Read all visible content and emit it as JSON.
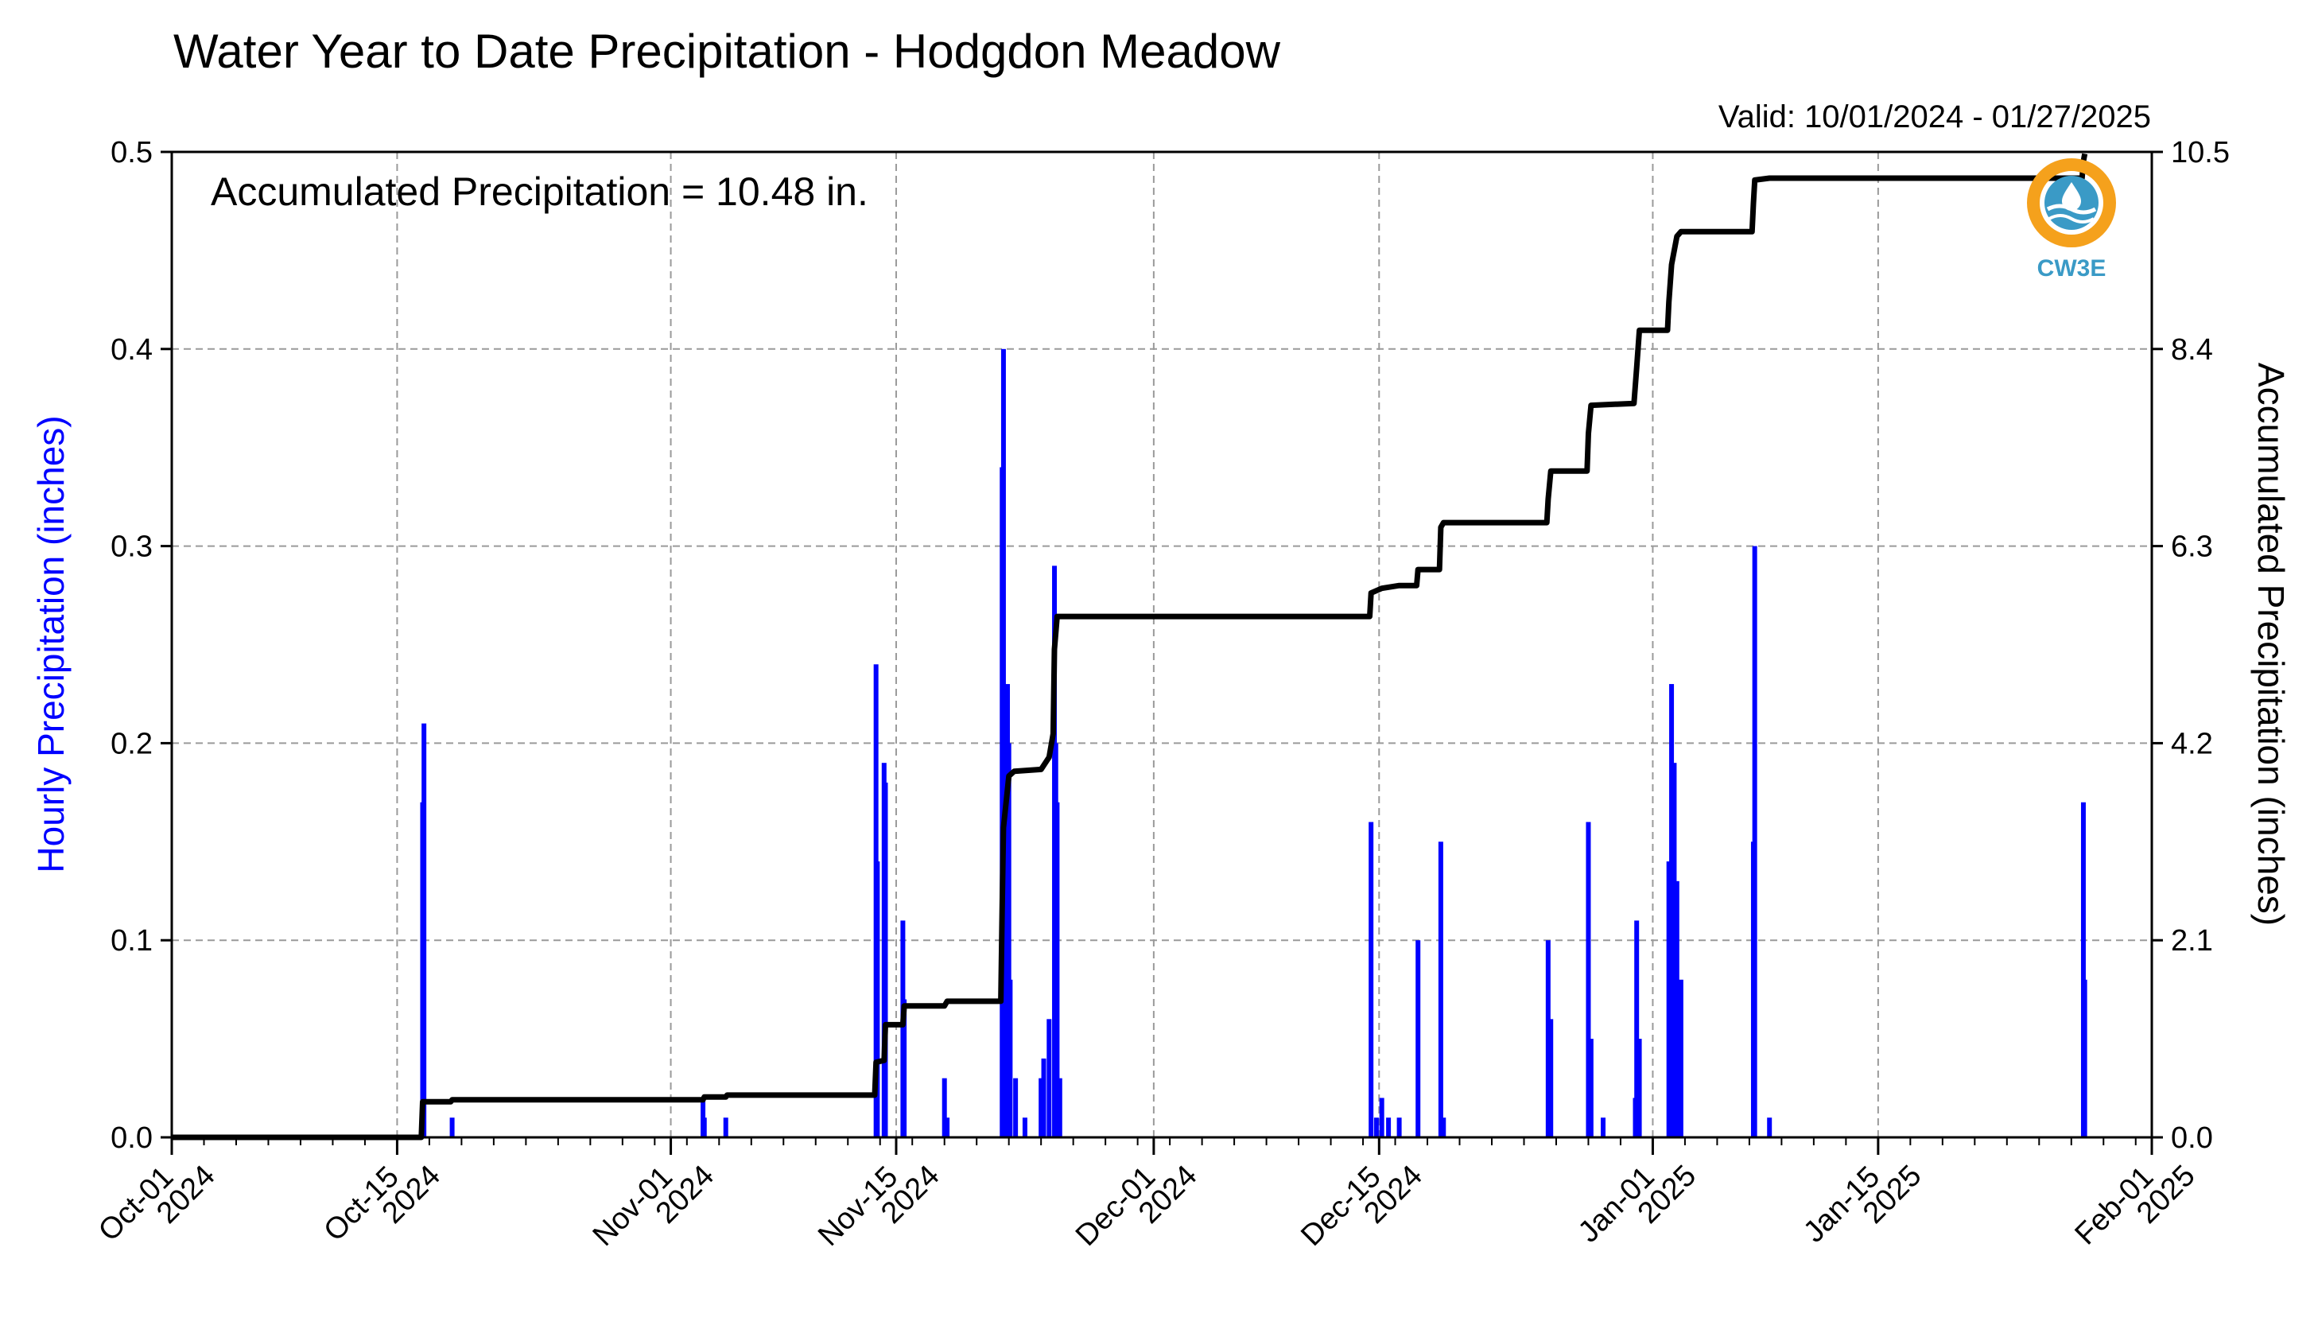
{
  "chart_data": {
    "type": "bar",
    "title": "Water Year to Date Precipitation - Hodgdon Meadow",
    "valid_label": "Valid: 10/01/2024 - 01/27/2025",
    "annotation": "Accumulated Precipitation = 10.48 in.",
    "ylabel_left": "Hourly Precipitation (inches)",
    "ylabel_right": "Accumulated Precipitation (inches)",
    "ylim_left": [
      0,
      0.5
    ],
    "ylim_right": [
      0,
      10.5
    ],
    "xlim": [
      "2024-10-01",
      "2025-02-01"
    ],
    "left_ticks": [
      "0.0",
      "0.1",
      "0.2",
      "0.3",
      "0.4",
      "0.5"
    ],
    "right_ticks": [
      "0.0",
      "2.1",
      "4.2",
      "6.3",
      "8.4",
      "10.5"
    ],
    "x_ticks": [
      {
        "date": "2024-10-01",
        "line1": "Oct-01",
        "line2": "2024"
      },
      {
        "date": "2024-10-15",
        "line1": "Oct-15",
        "line2": "2024"
      },
      {
        "date": "2024-11-01",
        "line1": "Nov-01",
        "line2": "2024"
      },
      {
        "date": "2024-11-15",
        "line1": "Nov-15",
        "line2": "2024"
      },
      {
        "date": "2024-12-01",
        "line1": "Dec-01",
        "line2": "2024"
      },
      {
        "date": "2024-12-15",
        "line1": "Dec-15",
        "line2": "2024"
      },
      {
        "date": "2025-01-01",
        "line1": "Jan-01",
        "line2": "2025"
      },
      {
        "date": "2025-01-15",
        "line1": "Jan-15",
        "line2": "2025"
      },
      {
        "date": "2025-02-01",
        "line1": "Feb-01",
        "line2": "2025"
      }
    ],
    "grid": true,
    "series": [
      {
        "name": "Hourly Precipitation",
        "color": "#0000ff",
        "type": "bar",
        "points": [
          [
            "2024-10-16T14:00",
            0.17
          ],
          [
            "2024-10-16T16:00",
            0.21
          ],
          [
            "2024-10-18T10:00",
            0.01
          ],
          [
            "2024-11-03T00:00",
            0.02
          ],
          [
            "2024-11-03T02:00",
            0.01
          ],
          [
            "2024-11-04T10:00",
            0.01
          ],
          [
            "2024-11-13T18:00",
            0.24
          ],
          [
            "2024-11-13T20:00",
            0.14
          ],
          [
            "2024-11-14T06:00",
            0.19
          ],
          [
            "2024-11-14T08:00",
            0.18
          ],
          [
            "2024-11-15T10:00",
            0.11
          ],
          [
            "2024-11-15T12:00",
            0.07
          ],
          [
            "2024-11-18T00:00",
            0.03
          ],
          [
            "2024-11-18T04:00",
            0.01
          ],
          [
            "2024-11-21T14:00",
            0.34
          ],
          [
            "2024-11-21T16:00",
            0.4
          ],
          [
            "2024-11-21T22:00",
            0.23
          ],
          [
            "2024-11-22T00:00",
            0.2
          ],
          [
            "2024-11-22T02:00",
            0.08
          ],
          [
            "2024-11-22T10:00",
            0.03
          ],
          [
            "2024-11-23T00:00",
            0.01
          ],
          [
            "2024-11-24T00:00",
            0.03
          ],
          [
            "2024-11-24T04:00",
            0.04
          ],
          [
            "2024-11-24T12:00",
            0.06
          ],
          [
            "2024-11-24T20:00",
            0.29
          ],
          [
            "2024-11-24T22:00",
            0.2
          ],
          [
            "2024-11-25T00:00",
            0.17
          ],
          [
            "2024-11-25T04:00",
            0.03
          ],
          [
            "2024-12-14T12:00",
            0.16
          ],
          [
            "2024-12-14T20:00",
            0.01
          ],
          [
            "2024-12-15T04:00",
            0.02
          ],
          [
            "2024-12-15T14:00",
            0.01
          ],
          [
            "2024-12-16T06:00",
            0.01
          ],
          [
            "2024-12-17T10:00",
            0.1
          ],
          [
            "2024-12-18T20:00",
            0.15
          ],
          [
            "2024-12-19T00:00",
            0.01
          ],
          [
            "2024-12-25T12:00",
            0.1
          ],
          [
            "2024-12-25T16:00",
            0.06
          ],
          [
            "2024-12-28T00:00",
            0.16
          ],
          [
            "2024-12-28T04:00",
            0.05
          ],
          [
            "2024-12-28T22:00",
            0.01
          ],
          [
            "2024-12-31T00:00",
            0.11
          ],
          [
            "2024-12-31T04:00",
            0.05
          ],
          [
            "2024-12-30T22:00",
            0.02
          ],
          [
            "2025-01-02T00:00",
            0.14
          ],
          [
            "2025-01-02T04:00",
            0.23
          ],
          [
            "2025-01-02T08:00",
            0.19
          ],
          [
            "2025-01-02T12:00",
            0.13
          ],
          [
            "2025-01-02T18:00",
            0.08
          ],
          [
            "2025-01-07T06:00",
            0.15
          ],
          [
            "2025-01-07T08:00",
            0.3
          ],
          [
            "2025-01-08T06:00",
            0.01
          ],
          [
            "2025-01-27T18:00",
            0.17
          ],
          [
            "2025-01-27T20:00",
            0.08
          ]
        ]
      },
      {
        "name": "Accumulated Precipitation",
        "color": "#000000",
        "type": "line",
        "points": [
          [
            "2024-10-01T00:00",
            0.0
          ],
          [
            "2024-10-16T12:00",
            0.0
          ],
          [
            "2024-10-16T14:00",
            0.38
          ],
          [
            "2024-10-18T08:00",
            0.38
          ],
          [
            "2024-10-18T10:00",
            0.4
          ],
          [
            "2024-11-03T00:00",
            0.4
          ],
          [
            "2024-11-03T02:00",
            0.43
          ],
          [
            "2024-11-04T10:00",
            0.43
          ],
          [
            "2024-11-04T12:00",
            0.45
          ],
          [
            "2024-11-13T16:00",
            0.45
          ],
          [
            "2024-11-13T18:00",
            0.8
          ],
          [
            "2024-11-14T06:00",
            0.82
          ],
          [
            "2024-11-14T08:00",
            1.2
          ],
          [
            "2024-11-15T10:00",
            1.2
          ],
          [
            "2024-11-15T12:00",
            1.4
          ],
          [
            "2024-11-18T00:00",
            1.4
          ],
          [
            "2024-11-18T04:00",
            1.45
          ],
          [
            "2024-11-21T12:00",
            1.45
          ],
          [
            "2024-11-21T14:00",
            2.4
          ],
          [
            "2024-11-21T16:00",
            3.3
          ],
          [
            "2024-11-22T00:00",
            3.85
          ],
          [
            "2024-11-22T08:00",
            3.9
          ],
          [
            "2024-11-24T00:00",
            3.92
          ],
          [
            "2024-11-24T12:00",
            4.05
          ],
          [
            "2024-11-24T18:00",
            4.3
          ],
          [
            "2024-11-24T20:00",
            5.2
          ],
          [
            "2024-11-25T00:00",
            5.55
          ],
          [
            "2024-12-14T10:00",
            5.55
          ],
          [
            "2024-12-14T12:00",
            5.8
          ],
          [
            "2024-12-15T04:00",
            5.85
          ],
          [
            "2024-12-16T06:00",
            5.88
          ],
          [
            "2024-12-17T08:00",
            5.88
          ],
          [
            "2024-12-17T10:00",
            6.05
          ],
          [
            "2024-12-18T18:00",
            6.05
          ],
          [
            "2024-12-18T20:00",
            6.5
          ],
          [
            "2024-12-19T00:00",
            6.55
          ],
          [
            "2024-12-25T10:00",
            6.55
          ],
          [
            "2024-12-25T12:00",
            6.8
          ],
          [
            "2024-12-25T16:00",
            7.1
          ],
          [
            "2024-12-27T22:00",
            7.1
          ],
          [
            "2024-12-28T00:00",
            7.5
          ],
          [
            "2024-12-28T04:00",
            7.8
          ],
          [
            "2024-12-30T20:00",
            7.82
          ],
          [
            "2024-12-31T00:00",
            8.2
          ],
          [
            "2024-12-31T04:00",
            8.6
          ],
          [
            "2025-01-01T22:00",
            8.6
          ],
          [
            "2025-01-02T00:00",
            8.9
          ],
          [
            "2025-01-02T04:00",
            9.3
          ],
          [
            "2025-01-02T12:00",
            9.6
          ],
          [
            "2025-01-02T18:00",
            9.65
          ],
          [
            "2025-01-07T04:00",
            9.65
          ],
          [
            "2025-01-07T06:00",
            9.95
          ],
          [
            "2025-01-07T08:00",
            10.2
          ],
          [
            "2025-01-08T06:00",
            10.22
          ],
          [
            "2025-01-27T16:00",
            10.22
          ],
          [
            "2025-01-27T18:00",
            10.4
          ],
          [
            "2025-01-27T20:00",
            10.48
          ]
        ]
      }
    ],
    "logo_text": "CW3E",
    "logo_colors": {
      "orange": "#f5a11c",
      "blue": "#3a9ac6"
    }
  }
}
